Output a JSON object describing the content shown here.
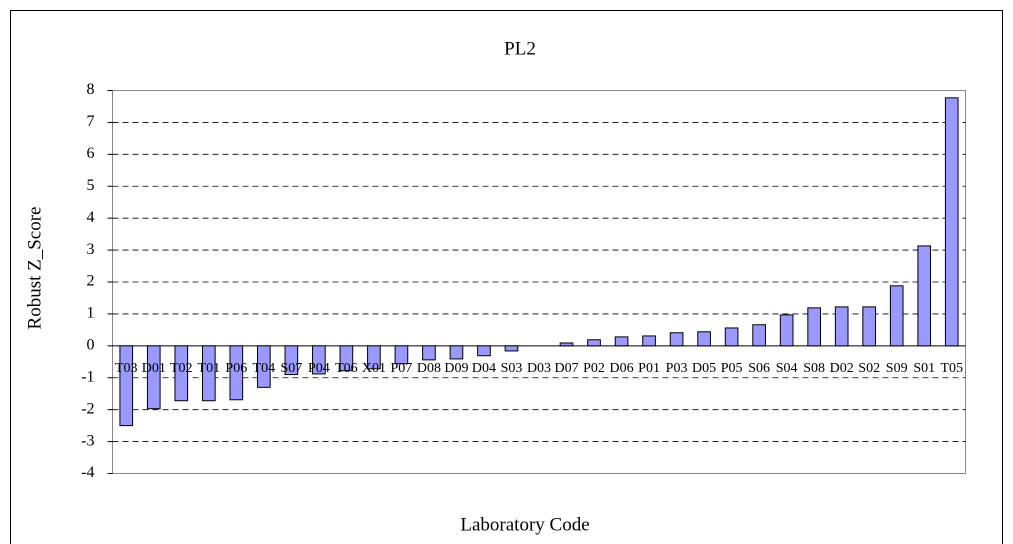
{
  "chart_data": {
    "type": "bar",
    "title": "PL2",
    "x_label": "Laboratory Code",
    "y_label": "Robust Z_Score",
    "categories": [
      "T03",
      "D01",
      "T02",
      "T01",
      "P06",
      "T04",
      "S07",
      "P04",
      "T06",
      "X01",
      "P07",
      "D08",
      "D09",
      "D04",
      "S03",
      "D03",
      "D07",
      "P02",
      "D06",
      "P01",
      "P03",
      "D05",
      "P05",
      "S06",
      "S04",
      "S08",
      "D02",
      "S02",
      "S09",
      "S01",
      "T05"
    ],
    "values": [
      -2.5,
      -1.97,
      -1.72,
      -1.72,
      -1.69,
      -1.3,
      -0.9,
      -0.88,
      -0.78,
      -0.72,
      -0.56,
      -0.44,
      -0.41,
      -0.31,
      -0.16,
      0,
      0.09,
      0.19,
      0.28,
      0.31,
      0.41,
      0.44,
      0.56,
      0.66,
      0.97,
      1.19,
      1.22,
      1.22,
      1.88,
      3.13,
      7.77
    ],
    "color": "#9999ff",
    "ylim": [
      -4,
      8
    ],
    "yticks": [
      -4,
      -3,
      -2,
      -1,
      0,
      1,
      2,
      3,
      4,
      5,
      6,
      7,
      8
    ],
    "grid": true
  }
}
